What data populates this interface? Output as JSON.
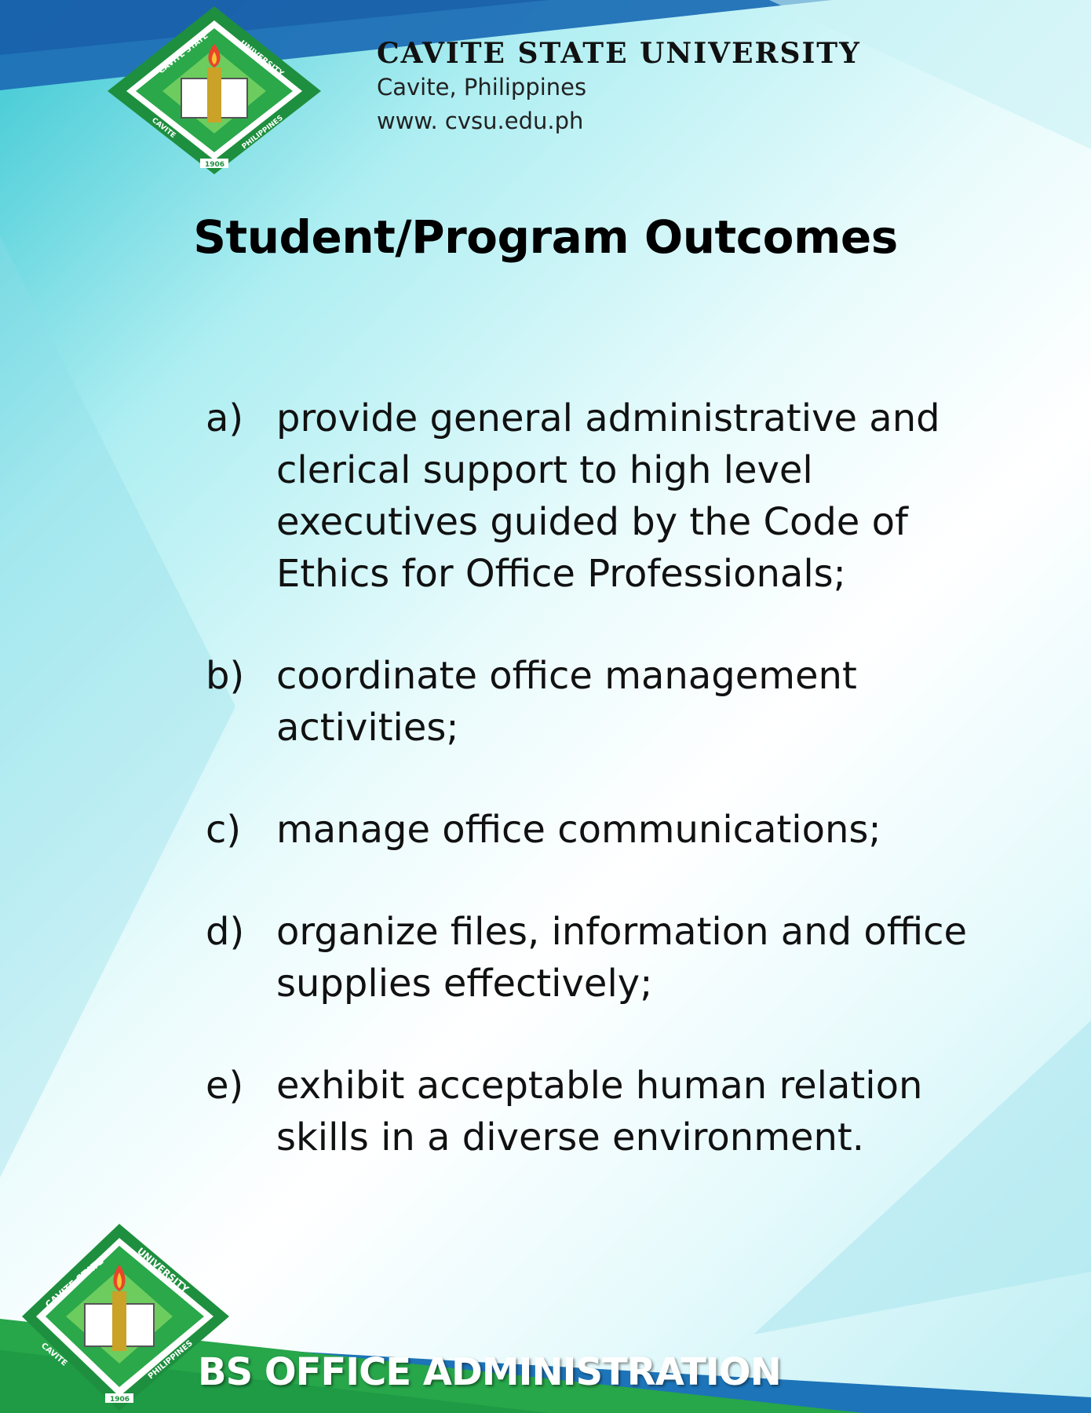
{
  "header": {
    "university": "CAVITE STATE UNIVERSITY",
    "location": "Cavite, Philippines",
    "website": "www. cvsu.edu.ph"
  },
  "seal": {
    "ring_top": "CAVITE STATE",
    "ring_right": "UNIVERSITY",
    "ring_left": "CAVITE",
    "ring_bottom_right": "PHILIPPINES",
    "year": "1906"
  },
  "title": "Student/Program Outcomes",
  "outcomes": [
    {
      "letter": "a)",
      "text": "provide general administrative and clerical support to high level executives guided by the Code of Ethics for Office Professionals;"
    },
    {
      "letter": "b)",
      "text": "coordinate office management activities;"
    },
    {
      "letter": "c)",
      "text": "manage office communications;"
    },
    {
      "letter": "d)",
      "text": "organize files, information and office supplies effectively;"
    },
    {
      "letter": "e)",
      "text": "exhibit acceptable human relation skills in a diverse environment."
    }
  ],
  "footer": {
    "program": "BS OFFICE ADMINISTRATION"
  },
  "colors": {
    "top_band": "#1f6fb6",
    "footer_green": "#27a64a",
    "footer_blue": "#1d74b8",
    "seal_green": "#1e8f3e",
    "seal_light": "#5fc45a"
  }
}
